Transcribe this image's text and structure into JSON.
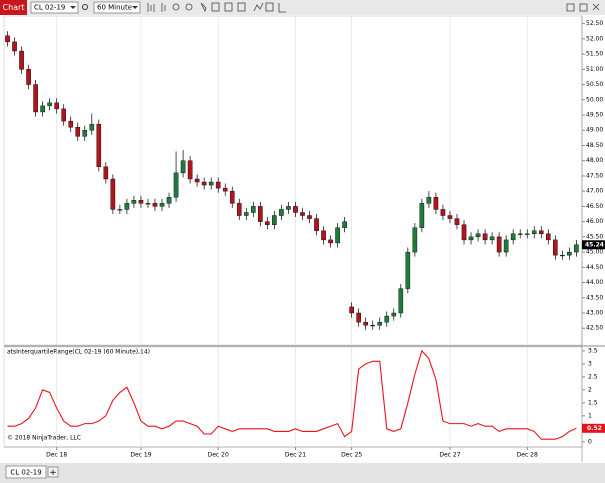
{
  "toolbar": {
    "tab": "Chart",
    "instrument": "CL 02-19",
    "interval": "60 Minute"
  },
  "chart_data": [
    {
      "type": "candlestick",
      "copyright": "© 2018 NinjaTrader, LLC",
      "up_color": "#1e7b3c",
      "down_color": "#b0141c",
      "open": [
        52.1,
        51.9,
        51.6,
        51.0,
        50.5,
        49.6,
        49.8,
        49.9,
        49.7,
        49.3,
        49.1,
        48.8,
        49.0,
        49.2,
        47.8,
        47.4,
        46.4,
        46.4,
        46.6,
        46.7,
        46.6,
        46.6,
        46.5,
        46.6,
        46.8,
        47.6,
        48.0,
        47.4,
        47.3,
        47.2,
        47.3,
        47.1,
        47.0,
        46.6,
        46.2,
        46.3,
        46.5,
        46.0,
        45.9,
        46.2,
        46.4,
        46.5,
        46.3,
        46.2,
        46.1,
        45.7,
        45.4,
        45.3,
        45.8,
        43.2,
        43.0,
        42.7,
        42.6,
        42.6,
        42.7,
        42.9,
        43.0,
        43.8,
        45.0,
        45.8,
        46.6,
        46.8,
        46.4,
        46.2,
        46.1,
        45.9,
        45.4,
        45.5,
        45.6,
        45.4,
        45.5,
        45.0,
        45.4,
        45.6,
        45.6,
        45.6,
        45.7,
        45.6,
        45.4,
        44.9,
        44.9,
        45.0
      ],
      "high": [
        52.25,
        52.05,
        51.75,
        51.15,
        50.65,
        49.95,
        50.05,
        50.05,
        49.85,
        49.45,
        49.25,
        49.15,
        49.55,
        49.35,
        47.95,
        47.55,
        46.55,
        46.75,
        46.85,
        46.85,
        46.75,
        46.75,
        46.75,
        46.95,
        48.3,
        48.35,
        48.15,
        47.55,
        47.45,
        47.45,
        47.45,
        47.25,
        47.15,
        46.75,
        46.45,
        46.65,
        46.65,
        46.15,
        46.35,
        46.55,
        46.65,
        46.65,
        46.45,
        46.35,
        46.25,
        45.85,
        45.55,
        45.95,
        46.15,
        43.35,
        43.15,
        42.85,
        42.75,
        42.85,
        43.05,
        43.15,
        43.95,
        45.15,
        45.95,
        46.75,
        47.0,
        46.95,
        46.55,
        46.35,
        46.25,
        46.05,
        45.65,
        45.75,
        45.75,
        45.65,
        45.65,
        45.55,
        45.75,
        45.75,
        45.75,
        45.85,
        45.85,
        45.75,
        45.55,
        45.05,
        45.15,
        45.4
      ],
      "low": [
        51.75,
        51.45,
        50.85,
        50.35,
        49.45,
        49.45,
        49.65,
        49.55,
        49.15,
        48.95,
        48.65,
        48.65,
        48.85,
        47.65,
        47.25,
        46.25,
        46.25,
        46.25,
        46.45,
        46.45,
        46.45,
        46.35,
        46.35,
        46.45,
        46.65,
        47.45,
        47.25,
        47.15,
        47.05,
        47.05,
        46.95,
        46.85,
        46.45,
        46.05,
        46.05,
        46.15,
        45.85,
        45.75,
        45.75,
        46.05,
        46.25,
        46.15,
        46.05,
        45.95,
        45.55,
        45.25,
        45.15,
        45.15,
        45.65,
        42.85,
        42.55,
        42.45,
        42.45,
        42.45,
        42.55,
        42.75,
        42.85,
        43.65,
        44.85,
        45.65,
        46.45,
        46.25,
        46.05,
        45.95,
        45.75,
        45.25,
        45.25,
        45.35,
        45.25,
        45.25,
        44.85,
        44.85,
        45.25,
        45.45,
        45.45,
        45.45,
        45.45,
        45.25,
        44.75,
        44.75,
        44.75,
        44.85
      ],
      "close": [
        51.9,
        51.6,
        51.0,
        50.5,
        49.6,
        49.8,
        49.9,
        49.7,
        49.3,
        49.1,
        48.8,
        49.0,
        49.2,
        47.8,
        47.4,
        46.4,
        46.4,
        46.6,
        46.7,
        46.6,
        46.6,
        46.5,
        46.6,
        46.8,
        47.6,
        48.0,
        47.4,
        47.3,
        47.2,
        47.3,
        47.1,
        47.0,
        46.6,
        46.2,
        46.3,
        46.5,
        46.0,
        45.9,
        46.2,
        46.4,
        46.5,
        46.3,
        46.2,
        46.1,
        45.7,
        45.4,
        45.3,
        45.8,
        46.0,
        43.0,
        42.7,
        42.6,
        42.6,
        42.7,
        42.9,
        43.0,
        43.8,
        45.0,
        45.8,
        46.6,
        46.8,
        46.4,
        46.2,
        46.1,
        45.9,
        45.4,
        45.5,
        45.6,
        45.4,
        45.5,
        45.0,
        45.4,
        45.6,
        45.6,
        45.6,
        45.7,
        45.6,
        45.4,
        44.9,
        44.9,
        45.0,
        45.24
      ],
      "xlim": [
        -0.5,
        81.8
      ],
      "xticks": [
        {
          "value": 7,
          "label": "Dec 18"
        },
        {
          "value": 19,
          "label": "Dec 19"
        },
        {
          "value": 30,
          "label": "Dec 20"
        },
        {
          "value": 41,
          "label": "Dec 21"
        },
        {
          "value": 49,
          "label": "Dec 25"
        },
        {
          "value": 63,
          "label": "Dec 27"
        },
        {
          "value": 74,
          "label": "Dec 28"
        }
      ],
      "ylim": [
        41.95,
        52.75
      ],
      "yticks": [
        {
          "value": 52.5,
          "label": "52.50"
        },
        {
          "value": 52,
          "label": "52.00"
        },
        {
          "value": 51.5,
          "label": "51.50"
        },
        {
          "value": 51,
          "label": "51.00"
        },
        {
          "value": 50.5,
          "label": "50.50"
        },
        {
          "value": 50,
          "label": "50.00"
        },
        {
          "value": 49.5,
          "label": "49.50"
        },
        {
          "value": 49,
          "label": "49.00"
        },
        {
          "value": 48.5,
          "label": "48.50"
        },
        {
          "value": 48,
          "label": "48.00"
        },
        {
          "value": 47.5,
          "label": "47.50"
        },
        {
          "value": 47,
          "label": "47.00"
        },
        {
          "value": 46.5,
          "label": "46.50"
        },
        {
          "value": 46,
          "label": "46.00"
        },
        {
          "value": 45.5,
          "label": "45.50"
        },
        {
          "value": 45,
          "label": "45.00"
        },
        {
          "value": 44.5,
          "label": "44.50"
        },
        {
          "value": 44,
          "label": "44.00"
        },
        {
          "value": 43.5,
          "label": "43.50"
        },
        {
          "value": 43,
          "label": "43.00"
        },
        {
          "value": 42.5,
          "label": "42.50"
        }
      ],
      "vertical_grid": true
    },
    {
      "type": "line",
      "title": "atsInterquartileRange(CL 02-19 (60 Minute),14)",
      "color": "#e8121c",
      "values": [
        0.6,
        0.6,
        0.7,
        0.9,
        1.3,
        2.0,
        1.9,
        1.3,
        0.8,
        0.6,
        0.6,
        0.7,
        0.7,
        0.8,
        1.0,
        1.6,
        1.9,
        2.1,
        1.5,
        0.8,
        0.6,
        0.6,
        0.5,
        0.6,
        0.8,
        0.8,
        0.7,
        0.6,
        0.3,
        0.3,
        0.6,
        0.5,
        0.4,
        0.5,
        0.5,
        0.5,
        0.5,
        0.5,
        0.4,
        0.4,
        0.4,
        0.5,
        0.4,
        0.4,
        0.4,
        0.5,
        0.6,
        0.7,
        0.2,
        0.4,
        2.8,
        3.0,
        3.1,
        3.1,
        0.5,
        0.4,
        0.5,
        1.5,
        2.6,
        3.5,
        3.2,
        2.4,
        0.8,
        0.7,
        0.7,
        0.7,
        0.6,
        0.7,
        0.6,
        0.6,
        0.4,
        0.5,
        0.5,
        0.5,
        0.5,
        0.4,
        0.1,
        0.1,
        0.1,
        0.2,
        0.4,
        0.52
      ],
      "ylim": [
        -0.2,
        3.65
      ],
      "yticks": [
        3.5,
        3,
        2.5,
        2,
        1.5,
        1,
        0.5,
        0
      ]
    }
  ],
  "bottom_tabs": {
    "tab": "CL 02-19",
    "add": "+"
  }
}
